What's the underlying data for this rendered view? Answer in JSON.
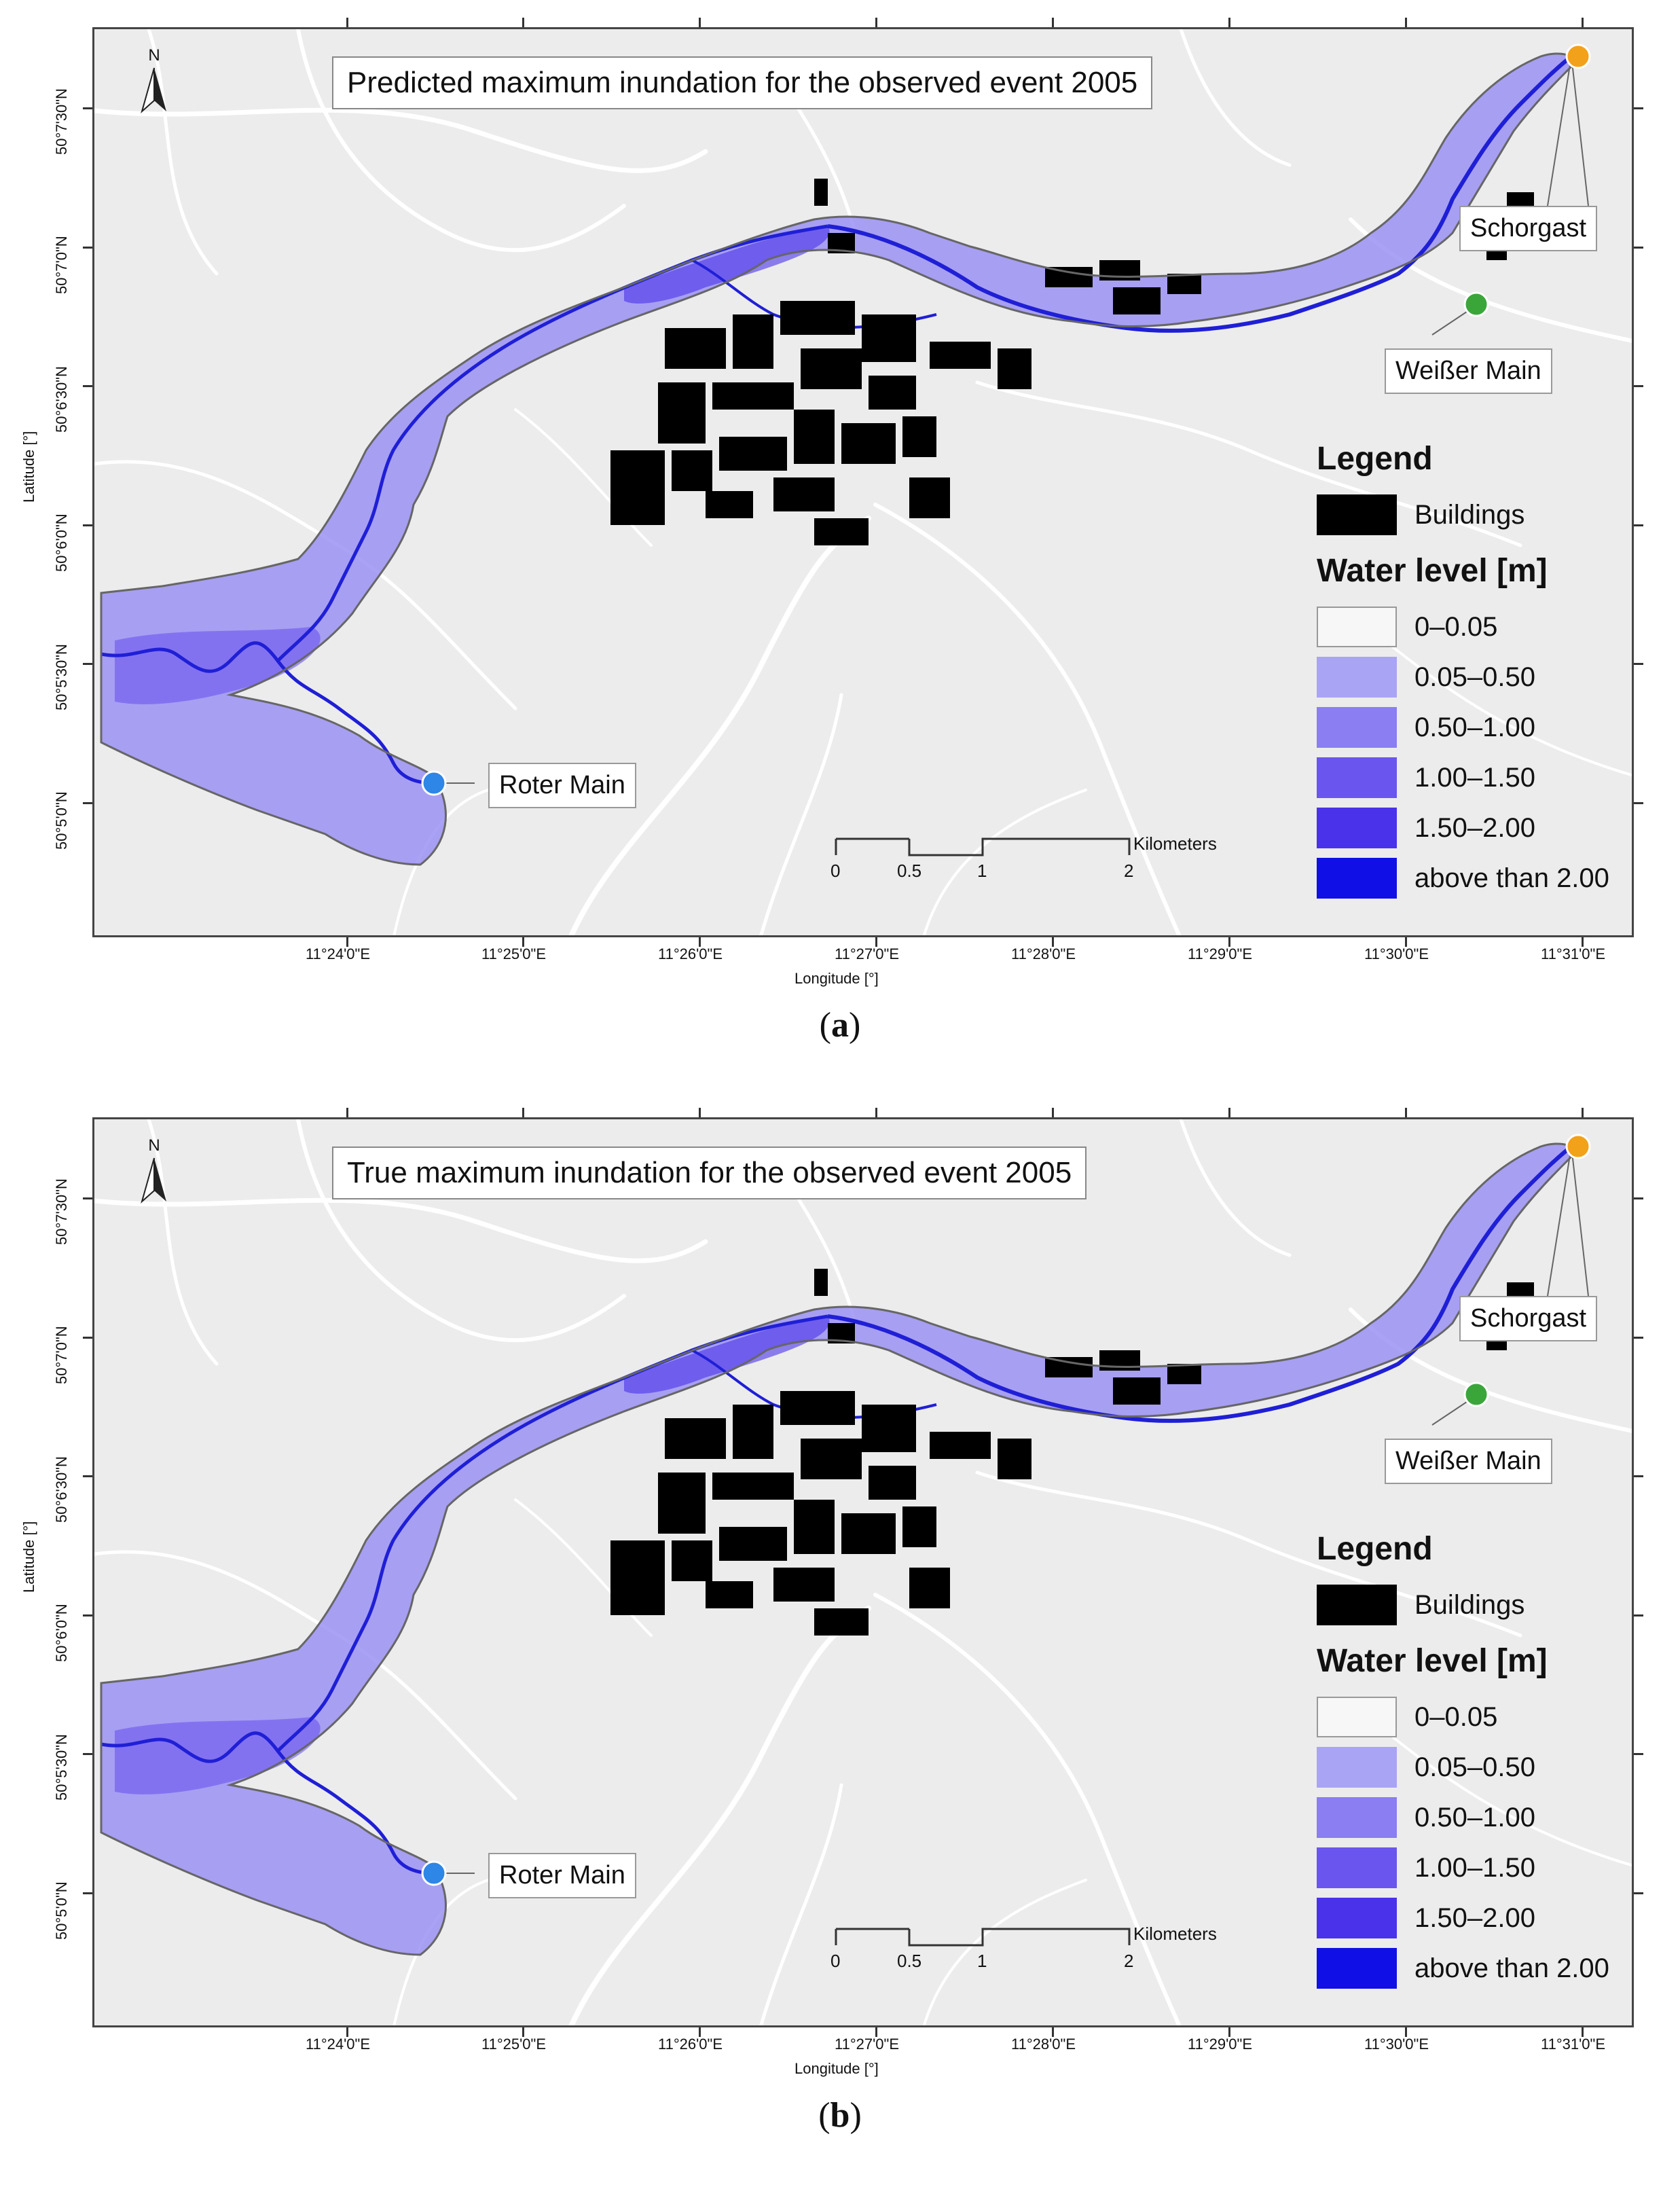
{
  "colors": {
    "map_background": "#ececec",
    "roads": "#ffffff",
    "buildings": "#000000",
    "river": "#1f1fd6",
    "boundary": "#666666",
    "roter_main_point": "#2e86e6",
    "weisser_main_point": "#3aa63a",
    "schorgast_point": "#f2a11a"
  },
  "axes": {
    "y_title": "Latitude [°]",
    "x_title": "Longitude [°]",
    "lat_ticks": [
      "50°7'30\"N",
      "50°7'0\"N",
      "50°6'30\"N",
      "50°6'0\"N",
      "50°5'30\"N",
      "50°5'0\"N"
    ],
    "lon_ticks": [
      "11°24'0\"E",
      "11°25'0\"E",
      "11°26'0\"E",
      "11°27'0\"E",
      "11°28'0\"E",
      "11°29'0\"E",
      "11°30'0\"E",
      "11°31'0\"E"
    ]
  },
  "points": {
    "roter_main": "Roter Main",
    "weisser_main": "Weißer Main",
    "schorgast": "Schorgast"
  },
  "north_arrow": "N",
  "scale": {
    "unit": "Kilometers",
    "ticks": [
      "0",
      "0.5",
      "1",
      "2"
    ]
  },
  "legend": {
    "title": "Legend",
    "buildings_label": "Buildings",
    "water_title": "Water level [m]",
    "classes": [
      {
        "label": "0–0.05",
        "color": "#f7f7f7"
      },
      {
        "label": "0.05–0.50",
        "color": "#aaa4f5"
      },
      {
        "label": "0.50–1.00",
        "color": "#8a7ef2"
      },
      {
        "label": "1.00–1.50",
        "color": "#6a55ee"
      },
      {
        "label": "1.50–2.00",
        "color": "#4a32ea"
      },
      {
        "label": "above than 2.00",
        "color": "#1010e6"
      }
    ]
  },
  "panels": [
    {
      "title": "Predicted maximum inundation for the observed event 2005",
      "caption_letter": "a"
    },
    {
      "title": "True maximum inundation for the observed event 2005",
      "caption_letter": "b"
    }
  ]
}
